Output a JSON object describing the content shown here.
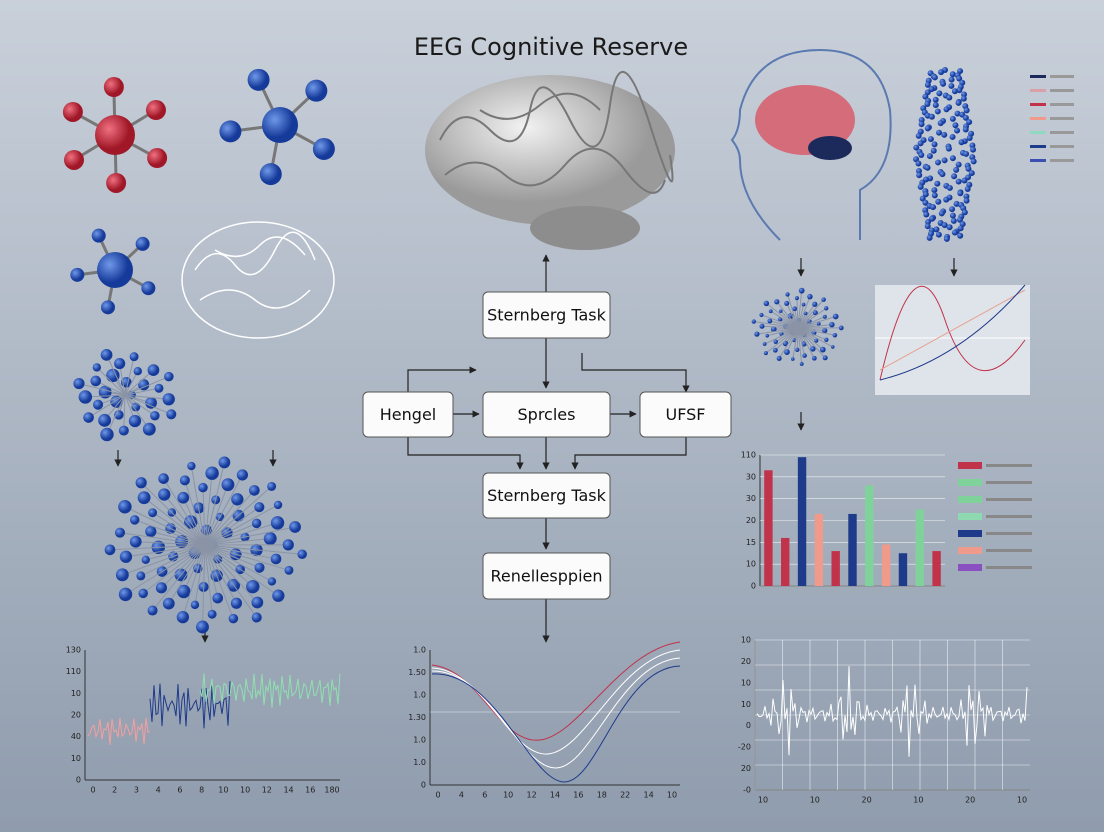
{
  "title": "EEG Cognitive Reserve",
  "nodes": [
    {
      "label": "Sternberg Task"
    },
    {
      "label": "Hengel"
    },
    {
      "label": "Sprcles"
    },
    {
      "label": "UFSF"
    },
    {
      "label": "Sternberg Task"
    },
    {
      "label": "Renellesppien"
    }
  ],
  "bar_panel": {
    "yticks": [
      {
        "value": 0,
        "label": "0"
      },
      {
        "value": 1,
        "label": "10"
      },
      {
        "value": 2,
        "label": "15"
      },
      {
        "value": 3,
        "label": "20"
      },
      {
        "value": 4,
        "label": "30"
      },
      {
        "value": 5,
        "label": "30"
      },
      {
        "value": 6,
        "label": "110"
      }
    ],
    "ylim": [
      0,
      6
    ],
    "bars": [
      {
        "color": "#c0334a",
        "value": 5.3
      },
      {
        "color": "#c0334a",
        "value": 2.2
      },
      {
        "color": "#1e3a8a",
        "value": 5.9
      },
      {
        "color": "#ef9a8a",
        "value": 3.3
      },
      {
        "color": "#c0334a",
        "value": 1.6
      },
      {
        "color": "#1e3a8a",
        "value": 3.3
      },
      {
        "color": "#7fd39a",
        "value": 4.6
      },
      {
        "color": "#ef9a8a",
        "value": 1.9
      },
      {
        "color": "#1e3a8a",
        "value": 1.5
      },
      {
        "color": "#7fd39a",
        "value": 3.5
      },
      {
        "color": "#c0334a",
        "value": 1.6
      }
    ],
    "legend_colors": [
      "#c0334a",
      "#7fd39a",
      "#7fd39a",
      "#8fd9b0",
      "#1e3a8a",
      "#ef9a8a",
      "#8a4fc0"
    ]
  },
  "bottom_left": {
    "yticks": [
      "0",
      "10",
      "40",
      "20",
      "10",
      "110",
      "130"
    ],
    "xticks": [
      "0",
      "2",
      "3",
      "4",
      "6",
      "8",
      "10",
      "10",
      "12",
      "14",
      "16",
      "180"
    ]
  },
  "bottom_middle": {
    "yticks": [
      "0",
      "1.0",
      "1.0",
      "1.30",
      "1.0",
      "1.50",
      "1.0"
    ],
    "xticks": [
      "0",
      "4",
      "6",
      "10",
      "12",
      "14",
      "16",
      "18",
      "22",
      "14",
      "10"
    ]
  },
  "bottom_right": {
    "yticks": [
      "-0",
      "20",
      "-20",
      "0",
      "10",
      "10",
      "20",
      "10"
    ],
    "xticks": [
      "10",
      "10",
      "20",
      "10",
      "20",
      "10"
    ]
  }
}
